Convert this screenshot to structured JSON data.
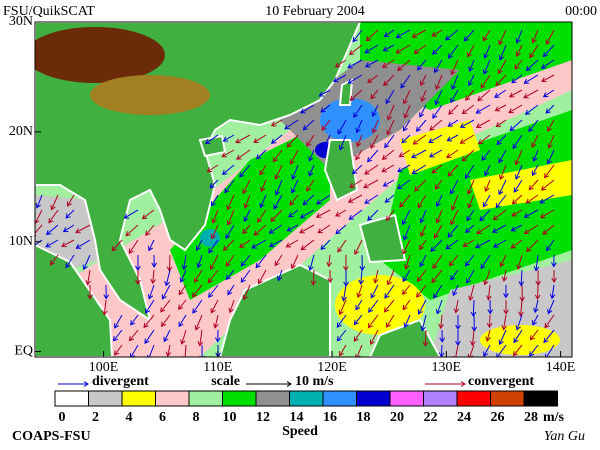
{
  "header": {
    "source": "FSU/QuikSCAT",
    "date": "10 February 2004",
    "time": "00:00"
  },
  "map": {
    "lonlim": [
      94,
      141
    ],
    "latlim": [
      -0.5,
      30
    ],
    "lon_ticks": [
      {
        "value": 100,
        "label": "100E"
      },
      {
        "value": 110,
        "label": "110E"
      },
      {
        "value": 120,
        "label": "120E"
      },
      {
        "value": 130,
        "label": "130E"
      },
      {
        "value": 140,
        "label": "140E"
      }
    ],
    "lat_ticks": [
      {
        "value": 30,
        "label": "30N"
      },
      {
        "value": 20,
        "label": "20N"
      },
      {
        "value": 10,
        "label": "10N"
      },
      {
        "value": 0,
        "label": "EQ"
      }
    ]
  },
  "legend": {
    "divergent": "divergent",
    "divergent_color": "#0000e0",
    "scale_label": "scale",
    "scale_value": "10 m/s",
    "convergent": "convergent",
    "convergent_color": "#b00020"
  },
  "colorbar": {
    "ticks": [
      0,
      2,
      4,
      6,
      8,
      10,
      12,
      14,
      16,
      18,
      20,
      22,
      24,
      26,
      28
    ],
    "unit": "m/s",
    "title": "Speed",
    "colors": [
      "#ffffff",
      "#c8c8c8",
      "#ffff00",
      "#ffc8c8",
      "#a0f0a0",
      "#00e000",
      "#909090",
      "#00b0b0",
      "#3090ff",
      "#0000d0",
      "#ff60ff",
      "#b080ff",
      "#ff0000",
      "#d04000",
      "#000000"
    ]
  },
  "footer": {
    "left": "COAPS-FSU",
    "right": "Yan Gu"
  }
}
